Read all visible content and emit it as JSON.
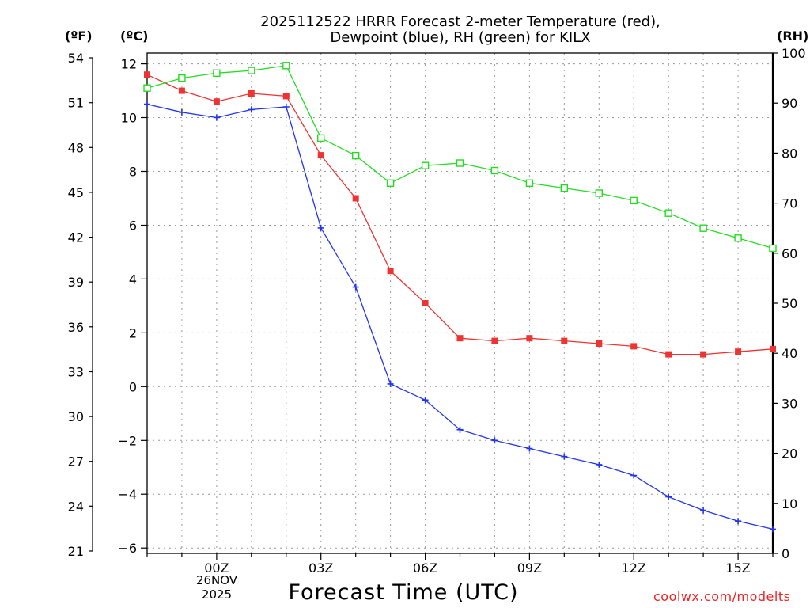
{
  "title": {
    "line1": "2025112522 HRRR Forecast 2-meter Temperature (red),",
    "line2": "Dewpoint (blue), RH (green) for KILX"
  },
  "units": {
    "fahrenheit": "(ºF)",
    "celsius": "(ºC)",
    "rh": "(RH)"
  },
  "footer": {
    "xlabel": "Forecast Time (UTC)",
    "credit": "coolwx.com/modelts"
  },
  "date_label": {
    "day": "26NOV",
    "year": "2025"
  },
  "colors": {
    "temperature": "#ee3333",
    "dewpoint": "#2233ee",
    "rh": "#22dd22",
    "grid": "#999999"
  },
  "chart_data": {
    "type": "line",
    "title": "2025112522 HRRR Forecast 2-meter Temperature (red), Dewpoint (blue), RH (green) for KILX",
    "xlabel": "Forecast Time (UTC)",
    "x": [
      -2,
      -1,
      0,
      1,
      2,
      3,
      4,
      5,
      6,
      7,
      8,
      9,
      10,
      11,
      12,
      13,
      14,
      15,
      16
    ],
    "xlim": [
      -2,
      16
    ],
    "x_ticks": [
      {
        "x": 0,
        "label": "00Z"
      },
      {
        "x": 3,
        "label": "03Z"
      },
      {
        "x": 6,
        "label": "06Z"
      },
      {
        "x": 9,
        "label": "09Z"
      },
      {
        "x": 12,
        "label": "12Z"
      },
      {
        "x": 15,
        "label": "15Z"
      }
    ],
    "y_left_celsius": {
      "lim": [
        -6.2,
        12.4
      ],
      "ticks": [
        -6,
        -4,
        -2,
        0,
        2,
        4,
        6,
        8,
        10,
        12
      ]
    },
    "y_outer_fahrenheit": {
      "lim": [
        20.84,
        54.32
      ],
      "ticks": [
        21,
        24,
        27,
        30,
        33,
        36,
        39,
        42,
        45,
        48,
        51,
        54
      ]
    },
    "y_right_rh": {
      "lim": [
        0,
        100
      ],
      "ticks": [
        0,
        10,
        20,
        30,
        40,
        50,
        60,
        70,
        80,
        90,
        100
      ]
    },
    "grid": true,
    "series": [
      {
        "name": "Temperature",
        "axis": "celsius",
        "color": "#ee3333",
        "marker": "filled-square",
        "values": [
          11.6,
          11.0,
          10.6,
          10.9,
          10.8,
          8.6,
          7.0,
          4.3,
          3.1,
          1.8,
          1.7,
          1.8,
          1.7,
          1.6,
          1.5,
          1.2,
          1.2,
          1.3,
          1.4
        ]
      },
      {
        "name": "Dewpoint",
        "axis": "celsius",
        "color": "#2233ee",
        "marker": "plus",
        "values": [
          10.5,
          10.2,
          10.0,
          10.3,
          10.4,
          5.9,
          3.7,
          0.1,
          -0.5,
          -1.6,
          -2.0,
          -2.3,
          -2.6,
          -2.9,
          -3.3,
          -4.1,
          -4.6,
          -5.0,
          -5.3
        ]
      },
      {
        "name": "RH",
        "axis": "rh",
        "color": "#22dd22",
        "marker": "open-square",
        "values": [
          93,
          95,
          96,
          96.5,
          97.5,
          83,
          79.5,
          74,
          77.5,
          78,
          76.5,
          74,
          73,
          72,
          70.5,
          68,
          65,
          63,
          61
        ]
      }
    ]
  }
}
